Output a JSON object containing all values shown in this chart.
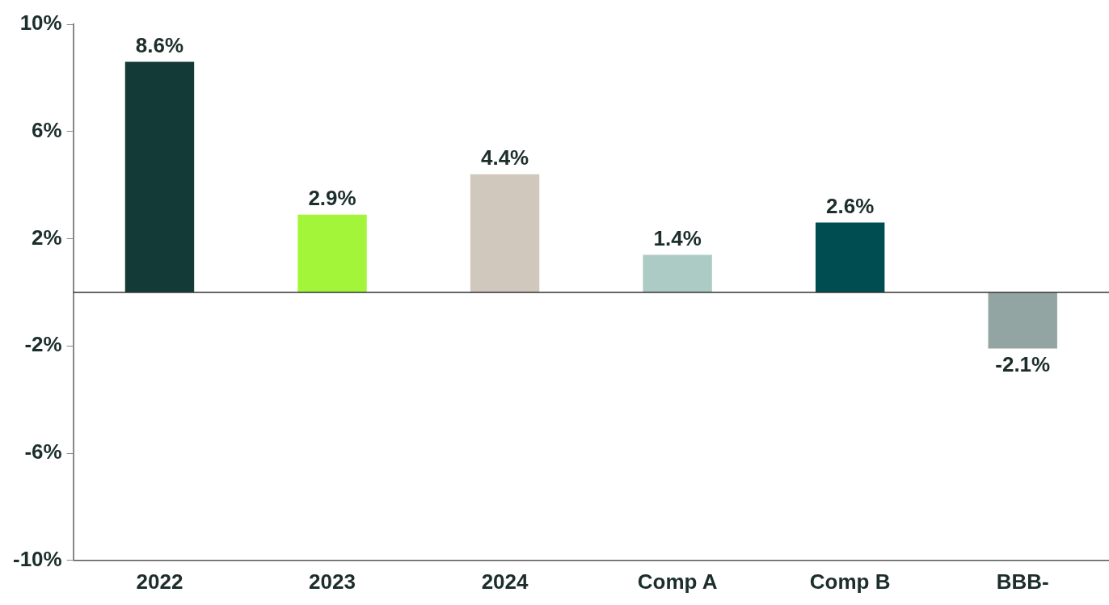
{
  "chart_data": {
    "type": "bar",
    "categories": [
      "2022",
      "2023",
      "2024",
      "Comp A",
      "Comp B",
      "BBB-"
    ],
    "values": [
      8.6,
      2.9,
      4.4,
      1.4,
      2.6,
      -2.1
    ],
    "colors": [
      "#133a37",
      "#a3f53a",
      "#d0c8bc",
      "#adcbc5",
      "#004d51",
      "#93a5a3"
    ],
    "ylim": [
      -10,
      10
    ],
    "yticks": [
      {
        "value": -10,
        "label": "-10%"
      },
      {
        "value": -6,
        "label": "-6%"
      },
      {
        "value": -2,
        "label": "-2%"
      },
      {
        "value": 2,
        "label": "2%"
      },
      {
        "value": 6,
        "label": "6%"
      },
      {
        "value": 10,
        "label": "10%"
      }
    ],
    "value_labels": [
      "8.6%",
      "2.9%",
      "4.4%",
      "1.4%",
      "2.6%",
      "-2.1%"
    ],
    "ref_lines": [
      {
        "axis": "y",
        "value": 0,
        "color": "#333333"
      }
    ],
    "grid": false,
    "legend": false
  }
}
